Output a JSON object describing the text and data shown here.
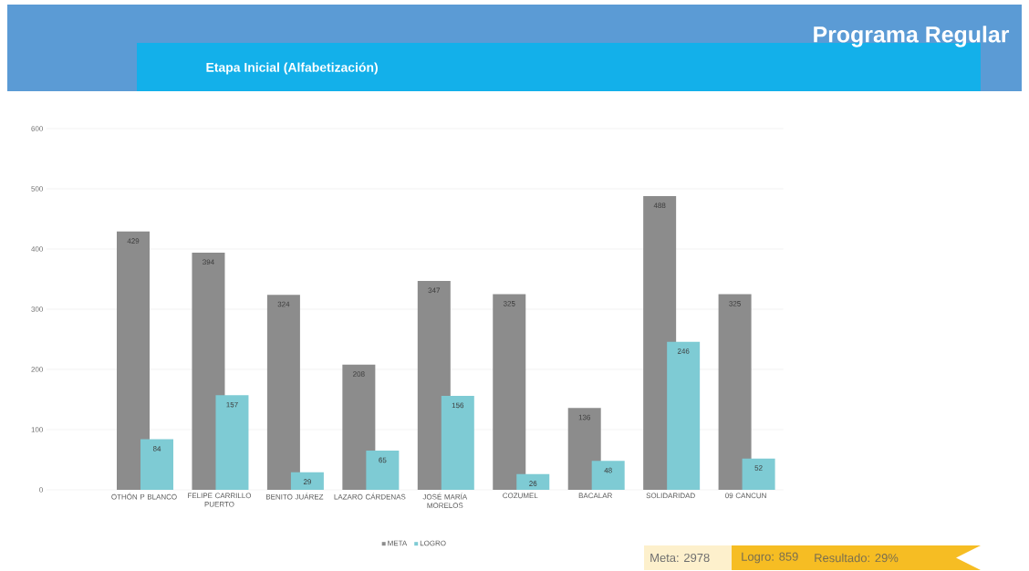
{
  "chart_data": {
    "type": "bar",
    "title": "Programa Regular",
    "subtitle": "Etapa Inicial (Alfabetización)",
    "categories": [
      "OTHÓN P BLANCO",
      "FELIPE CARRILLO PUERTO",
      "BENITO JUÁREZ",
      "LAZARO CÁRDENAS",
      "JOSÉ MARÍA MORELOS",
      "COZUMEL",
      "BACALAR",
      "SOLIDARIDAD",
      "09 CANCUN"
    ],
    "series": [
      {
        "name": "META",
        "color": "#8c8c8c",
        "values": [
          429,
          394,
          324,
          208,
          347,
          325,
          136,
          488,
          325
        ]
      },
      {
        "name": "LOGRO",
        "color": "#7ecbd4",
        "values": [
          84,
          157,
          29,
          65,
          156,
          26,
          48,
          246,
          52
        ]
      }
    ],
    "ylim": [
      0,
      600
    ],
    "yticks": [
      0,
      100,
      200,
      300,
      400,
      500,
      600
    ],
    "grid": "y",
    "legend": "bottom",
    "data_labels": true,
    "annotations": [
      "Meta: 2978",
      "Logro: 859",
      "Resultado: 29%"
    ]
  }
}
